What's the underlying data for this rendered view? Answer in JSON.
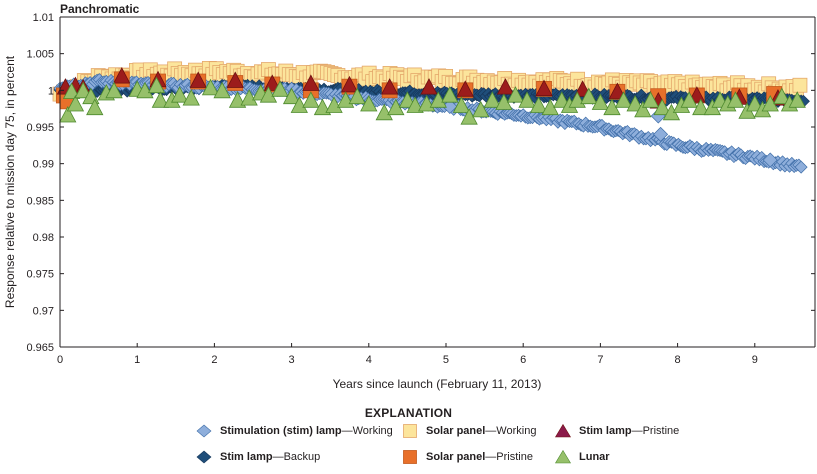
{
  "chart_data": {
    "type": "scatter",
    "title": "Panchromatic",
    "xlabel": "Years since launch (February 11, 2013)",
    "ylabel": "Response relative to mission day 75, in percent",
    "xlim": [
      0,
      9.78
    ],
    "ylim": [
      0.965,
      1.01
    ],
    "x_ticks": [
      "0",
      "1",
      "2",
      "3",
      "4",
      "5",
      "6",
      "7",
      "8",
      "9"
    ],
    "y_ticks": [
      "0.965",
      "0.97",
      "0.975",
      "0.98",
      "0.985",
      "0.99",
      "0.995",
      "1",
      "1.005",
      "1.01"
    ],
    "grid": false,
    "legend_title": "EXPLANATION",
    "legend_position": "bottom",
    "series": [
      {
        "name": "Stimulation (stim) lamp—Working",
        "bold": "Stimulation (stim) lamp",
        "suffix": "—Working",
        "marker": "diamond",
        "color": "#8eaedb",
        "stroke": "#3f6ea8",
        "trend": [
          [
            0.0,
            1.0005
          ],
          [
            0.5,
            1.0012
          ],
          [
            1.0,
            1.0009
          ],
          [
            2.0,
            1.0004
          ],
          [
            3.0,
            1.0
          ],
          [
            4.0,
            0.9988
          ],
          [
            5.0,
            0.9978
          ],
          [
            6.0,
            0.9966
          ],
          [
            7.0,
            0.995
          ],
          [
            8.0,
            0.9925
          ],
          [
            9.0,
            0.9908
          ],
          [
            9.6,
            0.9895
          ]
        ],
        "outliers": [
          [
            5.05,
            0.9978
          ],
          [
            7.75,
            0.9965
          ],
          [
            7.78,
            0.994
          ],
          [
            9.2,
            0.9905
          ]
        ]
      },
      {
        "name": "Stim lamp—Backup",
        "bold": "Stim lamp",
        "suffix": "—Backup",
        "marker": "diamond",
        "color": "#1f4e7a",
        "stroke": "#17375a",
        "trend": [
          [
            0.0,
            1.0
          ],
          [
            1.0,
            1.0002
          ],
          [
            2.0,
            1.0005
          ],
          [
            3.0,
            1.0003
          ],
          [
            4.0,
            0.9998
          ],
          [
            5.0,
            0.9995
          ],
          [
            6.0,
            0.9993
          ],
          [
            7.0,
            0.9992
          ],
          [
            8.0,
            0.9989
          ],
          [
            9.0,
            0.9988
          ],
          [
            9.65,
            0.9987
          ]
        ]
      },
      {
        "name": "Solar panel—Working",
        "bold": "Solar panel",
        "suffix": "—Working",
        "marker": "square",
        "color": "#fce59c",
        "stroke": "#e4a86b",
        "trend": [
          [
            0.0,
            0.9995
          ],
          [
            0.5,
            1.0017
          ],
          [
            1.0,
            1.0022
          ],
          [
            2.0,
            1.0025
          ],
          [
            3.0,
            1.0022
          ],
          [
            4.0,
            1.0018
          ],
          [
            5.0,
            1.0015
          ],
          [
            6.0,
            1.0012
          ],
          [
            7.0,
            1.001
          ],
          [
            8.0,
            1.0006
          ],
          [
            9.0,
            1.0004
          ],
          [
            9.6,
            1.0002
          ]
        ]
      },
      {
        "name": "Solar panel—Pristine",
        "bold": "Solar panel",
        "suffix": "—Pristine",
        "marker": "square",
        "color": "#e8702a",
        "stroke": "#c45a1c",
        "points": [
          [
            0.05,
            0.9993
          ],
          [
            0.1,
            0.9985
          ],
          [
            0.8,
            1.0015
          ],
          [
            1.27,
            1.0012
          ],
          [
            1.79,
            1.0012
          ],
          [
            2.27,
            1.001
          ],
          [
            2.75,
            1.0008
          ],
          [
            3.25,
            1.0
          ],
          [
            3.75,
            1.0005
          ],
          [
            4.27,
            1.0
          ],
          [
            5.25,
            1.0
          ],
          [
            6.27,
            1.0002
          ],
          [
            7.22,
            0.9998
          ],
          [
            7.75,
            0.9992
          ],
          [
            8.25,
            0.9993
          ],
          [
            8.8,
            0.9993
          ],
          [
            9.25,
            0.9995
          ]
        ]
      },
      {
        "name": "Stim lamp—Pristine",
        "bold": "Stim lamp",
        "suffix": "—Pristine",
        "marker": "triangle",
        "color": "#8b1a4a",
        "fill_in_plot": "#9c1c1c",
        "stroke": "#6e1010",
        "points": [
          [
            0.07,
            1.0003
          ],
          [
            0.2,
            1.0005
          ],
          [
            0.3,
            1.0002
          ],
          [
            0.8,
            1.0018
          ],
          [
            1.27,
            1.0013
          ],
          [
            1.79,
            1.0012
          ],
          [
            2.27,
            1.0012
          ],
          [
            2.75,
            1.0008
          ],
          [
            3.25,
            1.0008
          ],
          [
            3.75,
            1.0006
          ],
          [
            4.27,
            1.0003
          ],
          [
            4.78,
            1.0003
          ],
          [
            5.25,
            1.0
          ],
          [
            5.77,
            1.0003
          ],
          [
            6.27,
            1.0001
          ],
          [
            6.77,
            1.0
          ],
          [
            7.22,
            0.9997
          ],
          [
            7.75,
            0.9984
          ],
          [
            8.25,
            0.9992
          ],
          [
            8.8,
            0.9989
          ],
          [
            9.3,
            0.9988
          ]
        ]
      },
      {
        "name": "Lunar",
        "bold": "Lunar",
        "suffix": "",
        "marker": "triangle",
        "color": "#96c06a",
        "stroke": "#4e8a2e",
        "points": [
          [
            0.1,
            0.9965
          ],
          [
            0.15,
            0.9997
          ],
          [
            0.2,
            0.998
          ],
          [
            0.3,
            0.9998
          ],
          [
            0.4,
            0.999
          ],
          [
            0.45,
            0.9975
          ],
          [
            0.6,
            0.9995
          ],
          [
            0.7,
            0.9998
          ],
          [
            1.0,
            1.0
          ],
          [
            1.1,
            0.9998
          ],
          [
            1.25,
            1.0005
          ],
          [
            1.3,
            0.9985
          ],
          [
            1.45,
            0.9985
          ],
          [
            1.55,
            0.9992
          ],
          [
            1.7,
            0.9988
          ],
          [
            1.95,
            1.0002
          ],
          [
            2.1,
            0.9998
          ],
          [
            2.3,
            0.9985
          ],
          [
            2.45,
            0.9988
          ],
          [
            2.6,
            0.9995
          ],
          [
            2.7,
            0.9992
          ],
          [
            2.85,
            1.0
          ],
          [
            3.0,
            0.999
          ],
          [
            3.1,
            0.9978
          ],
          [
            3.25,
            0.9985
          ],
          [
            3.4,
            0.9975
          ],
          [
            3.55,
            0.9978
          ],
          [
            3.7,
            0.9985
          ],
          [
            3.85,
            0.999
          ],
          [
            4.0,
            0.998
          ],
          [
            4.2,
            0.9968
          ],
          [
            4.35,
            0.9975
          ],
          [
            4.5,
            0.9985
          ],
          [
            4.6,
            0.9978
          ],
          [
            4.75,
            0.998
          ],
          [
            4.9,
            0.9985
          ],
          [
            5.05,
            0.9992
          ],
          [
            5.2,
            0.9978
          ],
          [
            5.3,
            0.9962
          ],
          [
            5.45,
            0.9972
          ],
          [
            5.6,
            0.9985
          ],
          [
            5.75,
            0.9982
          ],
          [
            5.9,
            0.9992
          ],
          [
            6.05,
            0.9985
          ],
          [
            6.2,
            0.9978
          ],
          [
            6.35,
            0.9975
          ],
          [
            6.5,
            0.9985
          ],
          [
            6.6,
            0.9978
          ],
          [
            6.7,
            0.9985
          ],
          [
            6.85,
            0.999
          ],
          [
            7.0,
            0.9982
          ],
          [
            7.15,
            0.9975
          ],
          [
            7.3,
            0.9985
          ],
          [
            7.45,
            0.998
          ],
          [
            7.55,
            0.9972
          ],
          [
            7.65,
            0.9985
          ],
          [
            7.8,
            0.9975
          ],
          [
            7.92,
            0.9968
          ],
          [
            8.05,
            0.9978
          ],
          [
            8.15,
            0.9985
          ],
          [
            8.3,
            0.9975
          ],
          [
            8.45,
            0.9975
          ],
          [
            8.55,
            0.9985
          ],
          [
            8.65,
            0.998
          ],
          [
            8.75,
            0.9985
          ],
          [
            8.9,
            0.997
          ],
          [
            9.0,
            0.998
          ],
          [
            9.1,
            0.9972
          ],
          [
            9.2,
            0.998
          ],
          [
            9.35,
            0.999
          ],
          [
            9.45,
            0.998
          ],
          [
            9.55,
            0.9985
          ]
        ]
      }
    ]
  }
}
